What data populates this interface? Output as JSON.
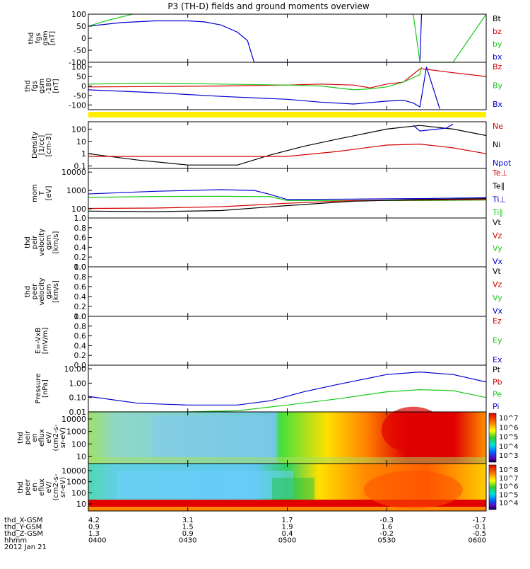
{
  "title": "P3 (TH-D) fields and ground moments overview",
  "colors": {
    "black": "#000000",
    "red": "#d40000",
    "green": "#1ec81e",
    "blue": "#0000d2",
    "yellow": "#ffee00"
  },
  "chart_data": [
    {
      "type": "line",
      "id": "fgs",
      "ylabel": [
        "thd",
        "fgs",
        "gsm",
        "[nT]"
      ],
      "ylim": [
        -100,
        100
      ],
      "yticks": [
        "100",
        "50",
        "0",
        "-50",
        "-100"
      ],
      "legend": [
        {
          "name": "Bt",
          "color": "black"
        },
        {
          "name": "bz",
          "color": "red"
        },
        {
          "name": "by",
          "color": "green"
        },
        {
          "name": "bx",
          "color": "blue"
        }
      ],
      "series": [
        {
          "name": "bx",
          "color": "blue",
          "x": [
            0,
            10,
            20,
            30,
            35,
            40,
            45,
            48,
            50,
            100,
            100.5
          ],
          "y": [
            50,
            65,
            72,
            72,
            68,
            55,
            25,
            -10,
            -100,
            -100,
            100
          ]
        },
        {
          "name": "by",
          "color": "green",
          "x": [
            0,
            6,
            12,
            18,
            98,
            100,
            110,
            115,
            120
          ],
          "y": [
            50,
            75,
            95,
            120,
            100,
            -100,
            -100,
            0,
            100
          ]
        }
      ]
    },
    {
      "type": "line",
      "id": "fgl",
      "ylabel": [
        "thd",
        "fgs",
        "gsm",
        "-180",
        "[nT]"
      ],
      "ylim": [
        -125,
        125
      ],
      "yticks": [
        "100",
        "50",
        "0",
        "-50",
        "-100"
      ],
      "legend": [
        {
          "name": "Bz",
          "color": "red"
        },
        {
          "name": "By",
          "color": "green"
        },
        {
          "name": "Bx",
          "color": "blue"
        }
      ],
      "series": [
        {
          "name": "Bz",
          "color": "red",
          "x": [
            0,
            20,
            40,
            60,
            70,
            80,
            85,
            90,
            95,
            100,
            101,
            110,
            120
          ],
          "y": [
            -5,
            -3,
            0,
            5,
            10,
            5,
            -10,
            10,
            20,
            90,
            90,
            70,
            50
          ]
        },
        {
          "name": "By",
          "color": "green",
          "x": [
            0,
            20,
            40,
            60,
            70,
            80,
            85,
            90,
            95,
            100,
            100.5
          ],
          "y": [
            10,
            15,
            10,
            5,
            0,
            -20,
            -15,
            -5,
            20,
            60,
            100
          ]
        },
        {
          "name": "Bx",
          "color": "blue",
          "x": [
            0,
            20,
            40,
            60,
            70,
            80,
            90,
            95,
            98,
            100,
            102,
            106
          ],
          "y": [
            -20,
            -35,
            -55,
            -70,
            -85,
            -95,
            -80,
            -75,
            -90,
            -110,
            100,
            -120
          ]
        }
      ]
    },
    {
      "type": "line",
      "id": "density",
      "ylabel": [
        "Density",
        "[1/cc]",
        "[cm-3]"
      ],
      "ylim_log": [
        -1.2,
        2.6
      ],
      "yticks": [
        "100",
        "10",
        "1",
        "0.1"
      ],
      "legend": [
        {
          "name": "Ne",
          "color": "red"
        },
        {
          "name": "Ni",
          "color": "black"
        },
        {
          "name": "Npot",
          "color": "blue"
        }
      ],
      "series": [
        {
          "name": "Ni",
          "color": "black",
          "x": [
            0,
            15,
            30,
            45,
            55,
            65,
            75,
            90,
            100,
            110,
            120
          ],
          "y": [
            1,
            0.3,
            0.12,
            0.12,
            0.8,
            4,
            15,
            100,
            200,
            100,
            30
          ]
        },
        {
          "name": "Ne",
          "color": "red",
          "x": [
            0,
            30,
            60,
            75,
            90,
            100,
            110,
            120
          ],
          "y": [
            0.6,
            0.6,
            0.6,
            1.5,
            5,
            6,
            3,
            1
          ]
        },
        {
          "name": "Npot",
          "color": "blue",
          "x": [
            98,
            100,
            108,
            110
          ],
          "y": [
            200,
            70,
            120,
            260
          ]
        }
      ]
    },
    {
      "type": "line",
      "id": "temperature",
      "ylabel": [
        "mom",
        "T",
        "[eV]"
      ],
      "ylim_log": [
        1.5,
        4.2
      ],
      "yticks": [
        "10000",
        "1000",
        "100"
      ],
      "legend": [
        {
          "name": "Te⊥",
          "color": "red"
        },
        {
          "name": "Te∥",
          "color": "black"
        },
        {
          "name": "Ti⊥",
          "color": "blue"
        },
        {
          "name": "Ti∥",
          "color": "green"
        }
      ],
      "series": [
        {
          "name": "Ti∥",
          "color": "green",
          "x": [
            0,
            20,
            40,
            55,
            60,
            80,
            100,
            120
          ],
          "y": [
            420,
            470,
            480,
            460,
            280,
            280,
            280,
            300
          ]
        },
        {
          "name": "Ti⊥",
          "color": "blue",
          "x": [
            0,
            20,
            40,
            50,
            55,
            60,
            80,
            100,
            120
          ],
          "y": [
            650,
            900,
            1100,
            1000,
            600,
            320,
            340,
            360,
            400
          ]
        },
        {
          "name": "Te⊥",
          "color": "red",
          "x": [
            0,
            20,
            40,
            60,
            80,
            100,
            120
          ],
          "y": [
            105,
            110,
            130,
            200,
            280,
            300,
            320
          ]
        },
        {
          "name": "Te∥",
          "color": "black",
          "x": [
            0,
            20,
            40,
            60,
            80,
            100,
            120
          ],
          "y": [
            75,
            70,
            80,
            150,
            260,
            320,
            360
          ]
        }
      ]
    },
    {
      "type": "line",
      "id": "vi",
      "ylabel": [
        "thd",
        "peir",
        "velocity",
        "gsm",
        "[km/s]"
      ],
      "ylim": [
        0,
        1
      ],
      "yticks": [
        "1.0",
        "0.8",
        "0.6",
        "0.4",
        "0.2",
        "0.0"
      ],
      "legend": [
        {
          "name": "Vt",
          "color": "black"
        },
        {
          "name": "Vz",
          "color": "red"
        },
        {
          "name": "Vy",
          "color": "green"
        },
        {
          "name": "Vx",
          "color": "blue"
        }
      ],
      "series": []
    },
    {
      "type": "line",
      "id": "ve",
      "ylabel": [
        "thd",
        "peer",
        "velocity",
        "gsm",
        "[km/s]"
      ],
      "ylim": [
        0,
        1
      ],
      "yticks": [
        "1.0",
        "0.8",
        "0.6",
        "0.4",
        "0.2",
        "0.0"
      ],
      "legend": [
        {
          "name": "Vt",
          "color": "black"
        },
        {
          "name": "Vz",
          "color": "red"
        },
        {
          "name": "Vy",
          "color": "green"
        },
        {
          "name": "Vx",
          "color": "blue"
        }
      ],
      "series": []
    },
    {
      "type": "line",
      "id": "efield",
      "ylabel": [
        "E=-VxB",
        "[mV/m]"
      ],
      "ylim": [
        0,
        1
      ],
      "yticks": [
        "1.0",
        "0.8",
        "0.6",
        "0.4",
        "0.2",
        "0.0"
      ],
      "legend": [
        {
          "name": "Ez",
          "color": "red"
        },
        {
          "name": "Ey",
          "color": "green"
        },
        {
          "name": "Ex",
          "color": "blue"
        }
      ],
      "series": []
    },
    {
      "type": "line",
      "id": "pressure",
      "ylabel": [
        "Pressure",
        "[nPa]"
      ],
      "ylim_log": [
        -2,
        1.25
      ],
      "yticks": [
        "10.00",
        "1.00",
        "0.10",
        "0.01"
      ],
      "legend": [
        {
          "name": "Pt",
          "color": "black"
        },
        {
          "name": "Pb",
          "color": "red"
        },
        {
          "name": "Pe",
          "color": "green"
        },
        {
          "name": "Pi",
          "color": "blue"
        }
      ],
      "series": [
        {
          "name": "Pi",
          "color": "blue",
          "x": [
            0,
            15,
            30,
            45,
            55,
            65,
            75,
            90,
            100,
            110,
            120
          ],
          "y": [
            0.12,
            0.04,
            0.03,
            0.03,
            0.06,
            0.25,
            0.8,
            4,
            6,
            4,
            1.2
          ]
        },
        {
          "name": "Pe",
          "color": "green",
          "x": [
            0,
            30,
            45,
            60,
            75,
            90,
            100,
            110,
            120
          ],
          "y": [
            0.01,
            0.01,
            0.012,
            0.03,
            0.08,
            0.25,
            0.35,
            0.3,
            0.1
          ]
        }
      ]
    },
    {
      "type": "heatmap",
      "id": "ion_spec",
      "ylabel": [
        "thd",
        "peir",
        "en",
        "eflux",
        "eV/",
        "(cm2-s-",
        "sr-eV)"
      ],
      "yticks": [
        "10000",
        "1000",
        "100",
        "10"
      ],
      "colorbar_labels": [
        "10^7",
        "10^6",
        "10^5",
        "10^4",
        "10^3"
      ]
    },
    {
      "type": "heatmap",
      "id": "elec_spec",
      "ylabel": [
        "thd",
        "peer",
        "en",
        "eflux",
        "eV/",
        "(cm2-s-",
        "sr-eV)"
      ],
      "yticks": [
        "10000",
        "1000",
        "100",
        "10"
      ],
      "colorbar_labels": [
        "10^8",
        "10^7",
        "10^6",
        "10^5",
        "10^4"
      ]
    }
  ],
  "footer": {
    "rows": [
      {
        "label": "thd_X-GSM",
        "values": [
          "4.2",
          "3.1",
          "1.7",
          "-0.3",
          "-1.7"
        ]
      },
      {
        "label": "thd_Y-GSM",
        "values": [
          "0.9",
          "1.5",
          "1.9",
          "1.6",
          "-0.1"
        ]
      },
      {
        "label": "thd_Z-GSM",
        "values": [
          "1.3",
          "0.9",
          "0.4",
          "-0.2",
          "-0.5"
        ]
      },
      {
        "label": "hhmm",
        "values": [
          "0400",
          "0430",
          "0500",
          "0530",
          "0600"
        ]
      }
    ],
    "date": "2012 Jan 21"
  }
}
